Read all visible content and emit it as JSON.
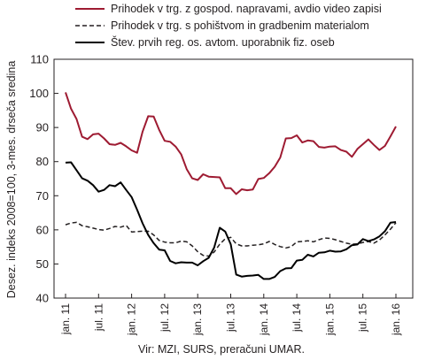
{
  "chart_data": {
    "type": "line",
    "ylabel": "Desez. indeks 2008=100, 3-mes. drseča sredina",
    "source": "Vir: MZI, SURS, preračuni UMAR.",
    "ylim": [
      40,
      110
    ],
    "yticks": [
      40,
      50,
      60,
      70,
      80,
      90,
      100,
      110
    ],
    "xticks": [
      "jan. 11",
      "jul. 11",
      "jan. 12",
      "jul. 12",
      "jan. 13",
      "jul. 13",
      "jan. 14",
      "jul. 14",
      "jan. 15",
      "jul. 15",
      "jan. 16"
    ],
    "grid": "none",
    "legend": "top",
    "series": [
      {
        "name": "Prihodek v trg. z gospod. napravami, avdio video zapisi",
        "color": "#9e1b32",
        "dash": "solid",
        "values": [
          100.3,
          95.5,
          92.5,
          87.3,
          86.6,
          88.0,
          88.2,
          86.8,
          85.1,
          84.9,
          85.5,
          84.5,
          83.3,
          82.6,
          88.8,
          93.3,
          93.2,
          89.3,
          86.1,
          85.8,
          84.4,
          82.1,
          77.8,
          75.1,
          74.6,
          76.3,
          75.6,
          75.5,
          75.4,
          72.2,
          72.2,
          70.5,
          71.9,
          71.6,
          71.8,
          74.9,
          75.2,
          76.6,
          78.5,
          81.2,
          86.8,
          86.9,
          87.7,
          85.6,
          86.2,
          86.0,
          84.3,
          84.1,
          84.4,
          84.5,
          83.4,
          82.9,
          81.4,
          83.7,
          85.1,
          86.5,
          84.9,
          83.4,
          84.6,
          87.4,
          90.3
        ]
      },
      {
        "name": "Prihodek v trg. s pohištvom in gradbenim materialom",
        "color": "#231f20",
        "dash": "dashed",
        "values": [
          61.5,
          62.0,
          62.2,
          61.2,
          60.9,
          60.5,
          60.1,
          59.9,
          60.4,
          61.0,
          60.8,
          61.3,
          59.4,
          59.5,
          59.6,
          59.6,
          58.5,
          56.9,
          56.4,
          56.2,
          56.2,
          56.7,
          56.5,
          55.3,
          53.6,
          52.5,
          52.3,
          53.5,
          55.8,
          57.4,
          57.8,
          55.9,
          55.3,
          55.3,
          55.5,
          55.6,
          55.9,
          56.6,
          55.7,
          55.1,
          54.7,
          55.1,
          56.5,
          56.6,
          56.8,
          56.5,
          57.1,
          57.6,
          57.5,
          57.1,
          56.6,
          56.1,
          55.8,
          55.9,
          56.3,
          56.6,
          56.1,
          57.0,
          58.5,
          60.2,
          62.1
        ]
      },
      {
        "name": "Štev. prvih reg. os. avtom. uporabnik fiz. oseb",
        "color": "#000000",
        "dash": "solid",
        "values": [
          79.7,
          79.8,
          77.5,
          75.1,
          74.4,
          73.1,
          71.2,
          71.7,
          73.1,
          72.8,
          73.9,
          71.7,
          69.6,
          65.9,
          61.9,
          58.5,
          56.1,
          54.2,
          54.0,
          50.9,
          50.2,
          50.5,
          50.4,
          50.4,
          49.6,
          50.8,
          51.8,
          54.8,
          60.6,
          59.5,
          55.8,
          46.9,
          46.3,
          46.5,
          46.6,
          46.8,
          45.6,
          45.6,
          46.2,
          47.9,
          48.7,
          48.8,
          51.0,
          51.2,
          52.7,
          52.2,
          53.3,
          53.4,
          53.9,
          53.6,
          53.7,
          54.3,
          55.5,
          55.7,
          57.3,
          56.7,
          57.2,
          58.1,
          59.6,
          62.1,
          62.3
        ]
      }
    ]
  }
}
